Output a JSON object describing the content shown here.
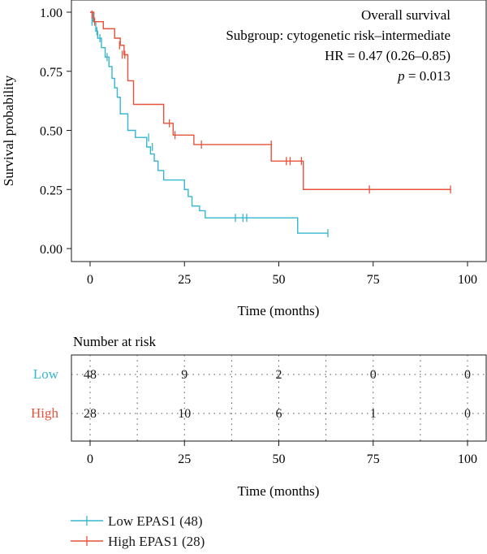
{
  "chart_data": [
    {
      "type": "line",
      "subtype": "kaplan-meier",
      "annotations": [
        "Overall survival",
        "Subgroup: cytogenetic risk–intermediate",
        "HR = 0.47 (0.26–0.85)"
      ],
      "p_label": "p",
      "p_value": "= 0.013",
      "xlabel": "Time (months)",
      "ylabel": "Survival probability",
      "xlim": [
        0,
        100
      ],
      "ylim": [
        0,
        1
      ],
      "x_ticks": [
        "0",
        "25",
        "50",
        "75",
        "100"
      ],
      "y_ticks": [
        "0.00",
        "0.25",
        "0.50",
        "0.75",
        "1.00"
      ],
      "grid": false,
      "series": [
        {
          "name": "Low EPAS1 (48)",
          "color": "#35b7d1",
          "x": [
            0,
            0.8,
            1.5,
            2.0,
            3.0,
            4.0,
            5.0,
            5.8,
            6.5,
            7.2,
            8.0,
            10.0,
            12.0,
            15.0,
            16.0,
            17.0,
            18.0,
            19.5,
            22.0,
            25.0,
            26.0,
            27.0,
            29.0,
            30.5,
            55.0,
            63.0
          ],
          "y": [
            1.0,
            0.96,
            0.92,
            0.89,
            0.85,
            0.81,
            0.77,
            0.72,
            0.68,
            0.64,
            0.57,
            0.5,
            0.47,
            0.43,
            0.4,
            0.37,
            0.33,
            0.29,
            0.29,
            0.25,
            0.22,
            0.18,
            0.16,
            0.13,
            0.065,
            0.065
          ],
          "censor_x": [
            0.5,
            1.8,
            2.6,
            4.5,
            15.5,
            16.5,
            38.5,
            40.5,
            41.5,
            63.0
          ],
          "censor_y": [
            0.96,
            0.92,
            0.89,
            0.81,
            0.47,
            0.43,
            0.13,
            0.13,
            0.13,
            0.065
          ]
        },
        {
          "name": "High EPAS1 (28)",
          "color": "#e8513a",
          "x": [
            0,
            1.0,
            3.5,
            6.5,
            8.0,
            9.0,
            10.0,
            11.5,
            19.5,
            22.0,
            27.5,
            48.0,
            56.5,
            95.5
          ],
          "y": [
            1.0,
            0.96,
            0.93,
            0.89,
            0.86,
            0.82,
            0.71,
            0.61,
            0.53,
            0.48,
            0.44,
            0.37,
            0.25,
            0.25
          ],
          "censor_x": [
            0.5,
            1.2,
            7.8,
            8.5,
            9.2,
            21.0,
            22.5,
            29.5,
            48.0,
            52.0,
            53.0,
            56.0,
            74.0,
            95.5
          ],
          "censor_y": [
            0.99,
            0.96,
            0.86,
            0.82,
            0.82,
            0.53,
            0.48,
            0.44,
            0.44,
            0.37,
            0.37,
            0.37,
            0.25,
            0.25
          ]
        }
      ]
    },
    {
      "type": "table",
      "title": "Number at risk",
      "xlabel": "Time (months)",
      "x_ticks": [
        "0",
        "25",
        "50",
        "75",
        "100"
      ],
      "row_labels": [
        "Low",
        "High"
      ],
      "row_colors": [
        "#35b7d1",
        "#e8513a"
      ],
      "rows": [
        [
          "48",
          "9",
          "2",
          "0",
          "0"
        ],
        [
          "28",
          "10",
          "6",
          "1",
          "0"
        ]
      ]
    }
  ],
  "legend": {
    "placement": "bottom-left",
    "items": [
      {
        "label": "Low EPAS1 (48)",
        "color": "#35b7d1"
      },
      {
        "label": "High EPAS1 (28)",
        "color": "#e8513a"
      }
    ]
  }
}
